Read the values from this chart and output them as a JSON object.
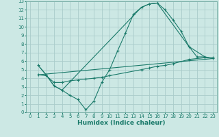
{
  "xlabel": "Humidex (Indice chaleur)",
  "bg_color": "#cce8e4",
  "grid_color": "#aaccca",
  "line_color": "#1a7a6a",
  "spine_color": "#5a9a90",
  "xlim": [
    -0.5,
    23.5
  ],
  "ylim": [
    0,
    13
  ],
  "xticks": [
    0,
    1,
    2,
    3,
    4,
    5,
    6,
    7,
    8,
    9,
    10,
    11,
    12,
    13,
    14,
    15,
    16,
    17,
    18,
    19,
    20,
    21,
    22,
    23
  ],
  "yticks": [
    0,
    1,
    2,
    3,
    4,
    5,
    6,
    7,
    8,
    9,
    10,
    11,
    12,
    13
  ],
  "line1_x": [
    1,
    2,
    3,
    4,
    5,
    6,
    7,
    8,
    9,
    10,
    11,
    12,
    13,
    14,
    15,
    16,
    17,
    18,
    19,
    20,
    21,
    22,
    23
  ],
  "line1_y": [
    5.5,
    4.4,
    3.1,
    2.6,
    2.0,
    1.5,
    0.3,
    1.3,
    3.5,
    5.0,
    7.2,
    9.3,
    11.5,
    12.3,
    12.7,
    12.8,
    12.0,
    10.8,
    9.5,
    7.7,
    6.5,
    6.5,
    6.3
  ],
  "line2_x": [
    1,
    2,
    3,
    4,
    14,
    15,
    16,
    20,
    22,
    23
  ],
  "line2_y": [
    5.5,
    4.4,
    3.1,
    2.6,
    12.3,
    12.7,
    12.8,
    7.7,
    6.5,
    6.3
  ],
  "line3_x": [
    1,
    23
  ],
  "line3_y": [
    4.4,
    6.3
  ],
  "line4_x": [
    1,
    2,
    3,
    4,
    5,
    6,
    7,
    8,
    9,
    10,
    14,
    15,
    16,
    17,
    18,
    20,
    22,
    23
  ],
  "line4_y": [
    4.4,
    4.3,
    3.5,
    3.5,
    3.7,
    3.8,
    3.9,
    4.0,
    4.1,
    4.3,
    5.0,
    5.2,
    5.4,
    5.5,
    5.7,
    6.2,
    6.4,
    6.4
  ],
  "tick_fontsize": 5.0,
  "xlabel_fontsize": 6.5,
  "linewidth": 0.8,
  "markersize": 2.5,
  "markeredgewidth": 0.8
}
